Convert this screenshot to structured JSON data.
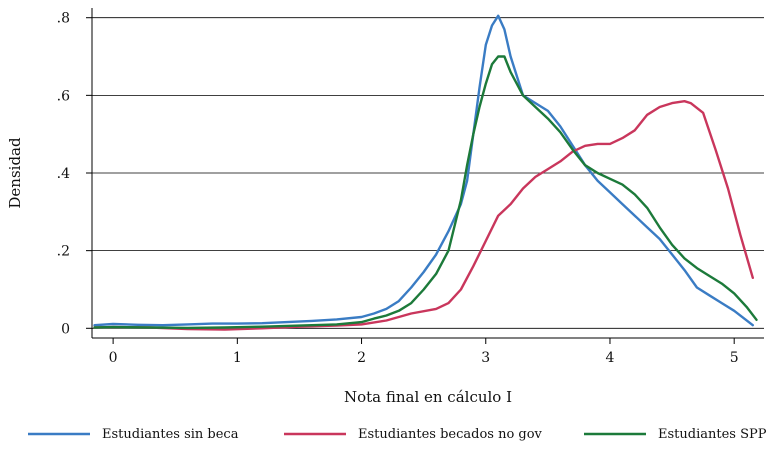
{
  "chart_data": {
    "type": "line",
    "xlabel": "Nota final en cálculo I",
    "ylabel": "Densidad",
    "xlim": [
      -0.17,
      5.24
    ],
    "ylim": [
      -0.025,
      0.825
    ],
    "x_ticks": [
      0,
      1,
      2,
      3,
      4,
      5
    ],
    "x_tick_labels": [
      "0",
      "1",
      "2",
      "3",
      "4",
      "5"
    ],
    "y_ticks": [
      0,
      0.2,
      0.4,
      0.6,
      0.8
    ],
    "y_tick_labels": [
      "0",
      ".2",
      ".4",
      ".6",
      ".8"
    ],
    "grid": "horizontal",
    "legend_position": "bottom",
    "series": [
      {
        "name": "Estudiantes sin beca",
        "color": "#3A7CC4",
        "x": [
          -0.15,
          0.0,
          0.2,
          0.4,
          0.6,
          0.8,
          1.0,
          1.2,
          1.4,
          1.6,
          1.8,
          2.0,
          2.1,
          2.2,
          2.3,
          2.4,
          2.5,
          2.6,
          2.7,
          2.8,
          2.85,
          2.9,
          2.95,
          3.0,
          3.05,
          3.1,
          3.15,
          3.2,
          3.3,
          3.4,
          3.5,
          3.6,
          3.7,
          3.8,
          3.9,
          4.0,
          4.1,
          4.2,
          4.3,
          4.4,
          4.5,
          4.6,
          4.7,
          4.8,
          4.9,
          5.0,
          5.15
        ],
        "y": [
          0.008,
          0.011,
          0.009,
          0.008,
          0.01,
          0.012,
          0.012,
          0.013,
          0.016,
          0.019,
          0.023,
          0.029,
          0.038,
          0.05,
          0.07,
          0.105,
          0.145,
          0.19,
          0.25,
          0.32,
          0.38,
          0.5,
          0.62,
          0.73,
          0.78,
          0.805,
          0.77,
          0.7,
          0.6,
          0.58,
          0.56,
          0.52,
          0.47,
          0.42,
          0.38,
          0.35,
          0.32,
          0.29,
          0.26,
          0.23,
          0.19,
          0.15,
          0.105,
          0.085,
          0.065,
          0.045,
          0.008
        ]
      },
      {
        "name": "Estudiantes becados no gov",
        "color": "#C9365C",
        "x": [
          -0.15,
          0.0,
          0.3,
          0.6,
          0.9,
          1.2,
          1.5,
          1.8,
          2.0,
          2.2,
          2.4,
          2.6,
          2.7,
          2.8,
          2.9,
          3.0,
          3.1,
          3.2,
          3.3,
          3.4,
          3.5,
          3.6,
          3.7,
          3.8,
          3.9,
          4.0,
          4.1,
          4.2,
          4.3,
          4.4,
          4.5,
          4.6,
          4.65,
          4.75,
          4.85,
          4.95,
          5.05,
          5.15
        ],
        "y": [
          0.002,
          0.003,
          0.002,
          -0.002,
          -0.003,
          0.0,
          0.004,
          0.007,
          0.01,
          0.02,
          0.038,
          0.05,
          0.065,
          0.1,
          0.16,
          0.225,
          0.29,
          0.32,
          0.36,
          0.39,
          0.41,
          0.43,
          0.455,
          0.47,
          0.475,
          0.475,
          0.49,
          0.51,
          0.55,
          0.57,
          0.58,
          0.585,
          0.58,
          0.555,
          0.46,
          0.36,
          0.24,
          0.13
        ]
      },
      {
        "name": "Estudiantes SPP",
        "color": "#1C7A3A",
        "x": [
          -0.15,
          0.0,
          0.3,
          0.6,
          0.9,
          1.2,
          1.5,
          1.8,
          2.0,
          2.1,
          2.2,
          2.3,
          2.4,
          2.5,
          2.6,
          2.7,
          2.8,
          2.85,
          2.9,
          2.95,
          3.0,
          3.05,
          3.1,
          3.15,
          3.2,
          3.3,
          3.4,
          3.5,
          3.6,
          3.7,
          3.8,
          3.9,
          4.0,
          4.1,
          4.2,
          4.3,
          4.4,
          4.5,
          4.6,
          4.7,
          4.8,
          4.9,
          5.0,
          5.1,
          5.18
        ],
        "y": [
          0.002,
          0.003,
          0.002,
          0.001,
          0.002,
          0.004,
          0.007,
          0.01,
          0.016,
          0.025,
          0.033,
          0.045,
          0.065,
          0.1,
          0.14,
          0.2,
          0.33,
          0.42,
          0.5,
          0.57,
          0.63,
          0.68,
          0.7,
          0.7,
          0.66,
          0.6,
          0.57,
          0.54,
          0.505,
          0.46,
          0.42,
          0.4,
          0.385,
          0.37,
          0.345,
          0.31,
          0.26,
          0.215,
          0.18,
          0.155,
          0.135,
          0.115,
          0.09,
          0.055,
          0.022
        ]
      }
    ]
  }
}
